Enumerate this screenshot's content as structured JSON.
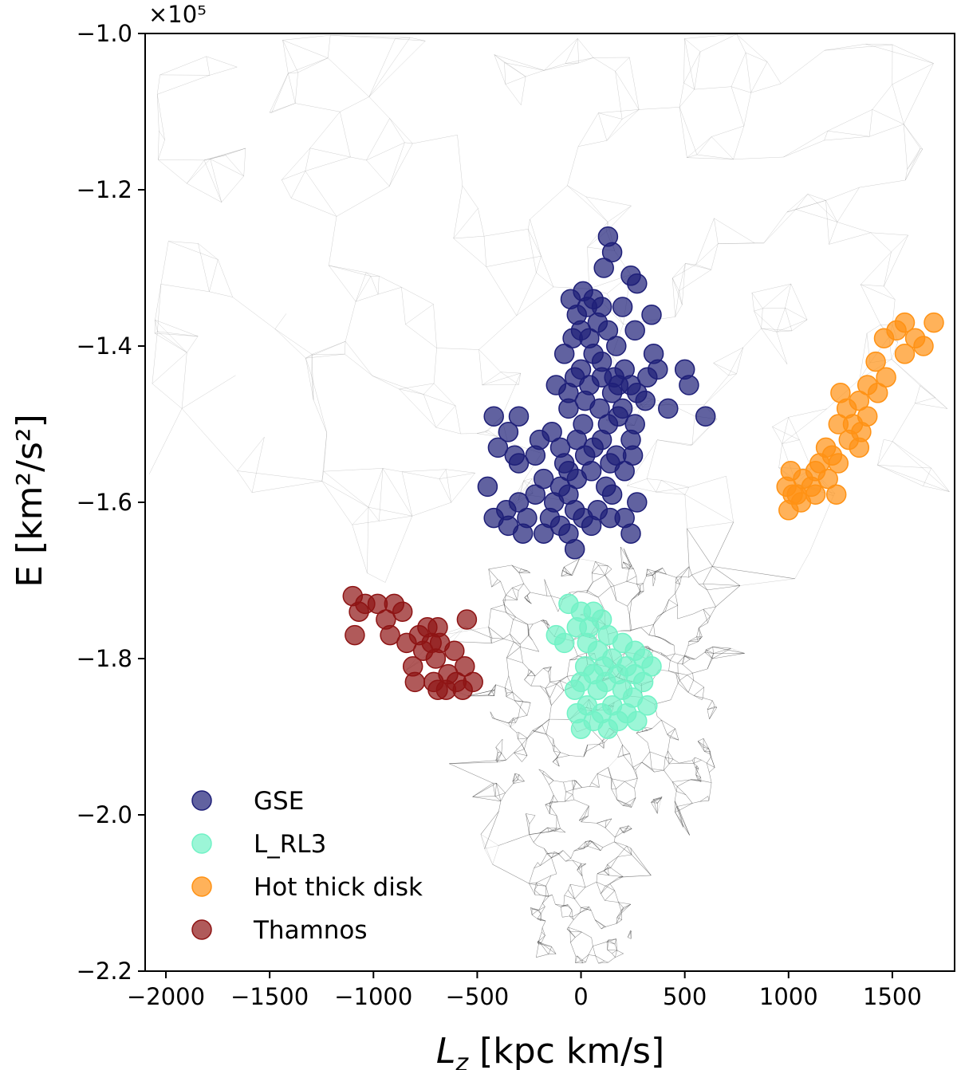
{
  "chart_data": {
    "type": "scatter",
    "xlabel_main": "L",
    "xlabel_sub": "z",
    "xlabel_rest": " [kpc km/s]",
    "ylabel": "E [km²/s²]",
    "y_multiplier": "×10⁵",
    "xlim": [
      -2100,
      1800
    ],
    "ylim": [
      -2.2,
      -1.0
    ],
    "x_ticks": [
      -2000,
      -1500,
      -1000,
      -500,
      0,
      500,
      1000,
      1500
    ],
    "x_tick_labels": [
      "−2000",
      "−1500",
      "−1000",
      "−500",
      "0",
      "500",
      "1000",
      "1500"
    ],
    "y_ticks": [
      -2.2,
      -2.0,
      -1.8,
      -1.6,
      -1.4,
      -1.2,
      -1.0
    ],
    "y_tick_labels": [
      "−2.2",
      "−2.0",
      "−1.8",
      "−1.6",
      "−1.4",
      "−1.2",
      "−1.0"
    ],
    "grid": false,
    "legend_position": "bottom-left",
    "background_network": "Delaunay-style mesh of thin gray/black line segments spanning the plot, densest around Lz 0–300, E −1.7 to −1.95",
    "series": [
      {
        "name": "GSE",
        "color": "#1e1f78",
        "points": [
          [
            130,
            -1.26
          ],
          [
            150,
            -1.28
          ],
          [
            110,
            -1.3
          ],
          [
            240,
            -1.31
          ],
          [
            270,
            -1.32
          ],
          [
            10,
            -1.33
          ],
          [
            60,
            -1.34
          ],
          [
            -50,
            -1.34
          ],
          [
            30,
            -1.35
          ],
          [
            100,
            -1.35
          ],
          [
            200,
            -1.35
          ],
          [
            340,
            -1.36
          ],
          [
            -20,
            -1.36
          ],
          [
            80,
            -1.37
          ],
          [
            0,
            -1.38
          ],
          [
            130,
            -1.38
          ],
          [
            260,
            -1.38
          ],
          [
            -40,
            -1.39
          ],
          [
            40,
            -1.39
          ],
          [
            170,
            -1.4
          ],
          [
            -80,
            -1.41
          ],
          [
            60,
            -1.41
          ],
          [
            100,
            -1.42
          ],
          [
            350,
            -1.41
          ],
          [
            0,
            -1.43
          ],
          [
            210,
            -1.43
          ],
          [
            370,
            -1.43
          ],
          [
            -30,
            -1.44
          ],
          [
            100,
            -1.44
          ],
          [
            160,
            -1.44
          ],
          [
            320,
            -1.44
          ],
          [
            500,
            -1.43
          ],
          [
            -120,
            -1.45
          ],
          [
            40,
            -1.45
          ],
          [
            180,
            -1.45
          ],
          [
            240,
            -1.45
          ],
          [
            520,
            -1.45
          ],
          [
            -60,
            -1.46
          ],
          [
            150,
            -1.46
          ],
          [
            270,
            -1.46
          ],
          [
            310,
            -1.47
          ],
          [
            20,
            -1.47
          ],
          [
            90,
            -1.48
          ],
          [
            200,
            -1.48
          ],
          [
            -60,
            -1.48
          ],
          [
            420,
            -1.48
          ],
          [
            600,
            -1.49
          ],
          [
            -420,
            -1.49
          ],
          [
            -300,
            -1.49
          ],
          [
            180,
            -1.49
          ],
          [
            10,
            -1.5
          ],
          [
            130,
            -1.5
          ],
          [
            260,
            -1.5
          ],
          [
            -350,
            -1.51
          ],
          [
            -140,
            -1.51
          ],
          [
            -200,
            -1.52
          ],
          [
            -20,
            -1.52
          ],
          [
            100,
            -1.52
          ],
          [
            240,
            -1.52
          ],
          [
            -400,
            -1.53
          ],
          [
            -100,
            -1.53
          ],
          [
            60,
            -1.53
          ],
          [
            -320,
            -1.54
          ],
          [
            -220,
            -1.54
          ],
          [
            20,
            -1.54
          ],
          [
            170,
            -1.54
          ],
          [
            250,
            -1.54
          ],
          [
            -80,
            -1.55
          ],
          [
            -300,
            -1.55
          ],
          [
            140,
            -1.55
          ],
          [
            -60,
            -1.56
          ],
          [
            50,
            -1.56
          ],
          [
            210,
            -1.56
          ],
          [
            -180,
            -1.57
          ],
          [
            -20,
            -1.57
          ],
          [
            -450,
            -1.58
          ],
          [
            -100,
            -1.58
          ],
          [
            120,
            -1.58
          ],
          [
            -220,
            -1.59
          ],
          [
            -60,
            -1.59
          ],
          [
            150,
            -1.59
          ],
          [
            -300,
            -1.6
          ],
          [
            -130,
            -1.6
          ],
          [
            270,
            -1.6
          ],
          [
            -360,
            -1.61
          ],
          [
            -30,
            -1.61
          ],
          [
            80,
            -1.61
          ],
          [
            -420,
            -1.62
          ],
          [
            -260,
            -1.62
          ],
          [
            -150,
            -1.62
          ],
          [
            10,
            -1.62
          ],
          [
            140,
            -1.62
          ],
          [
            210,
            -1.62
          ],
          [
            -350,
            -1.63
          ],
          [
            -100,
            -1.63
          ],
          [
            50,
            -1.63
          ],
          [
            -280,
            -1.64
          ],
          [
            -180,
            -1.64
          ],
          [
            -60,
            -1.64
          ],
          [
            240,
            -1.64
          ],
          [
            -30,
            -1.66
          ]
        ]
      },
      {
        "name": "L_RL3",
        "color": "#72f2c6",
        "points": [
          [
            -60,
            -1.73
          ],
          [
            0,
            -1.74
          ],
          [
            60,
            -1.74
          ],
          [
            100,
            -1.75
          ],
          [
            -20,
            -1.76
          ],
          [
            40,
            -1.76
          ],
          [
            130,
            -1.77
          ],
          [
            -120,
            -1.77
          ],
          [
            -80,
            -1.78
          ],
          [
            30,
            -1.78
          ],
          [
            200,
            -1.78
          ],
          [
            260,
            -1.79
          ],
          [
            80,
            -1.79
          ],
          [
            150,
            -1.8
          ],
          [
            300,
            -1.8
          ],
          [
            20,
            -1.81
          ],
          [
            110,
            -1.81
          ],
          [
            220,
            -1.81
          ],
          [
            340,
            -1.81
          ],
          [
            60,
            -1.82
          ],
          [
            180,
            -1.82
          ],
          [
            260,
            -1.82
          ],
          [
            0,
            -1.83
          ],
          [
            120,
            -1.83
          ],
          [
            300,
            -1.83
          ],
          [
            -30,
            -1.84
          ],
          [
            200,
            -1.84
          ],
          [
            80,
            -1.84
          ],
          [
            250,
            -1.85
          ],
          [
            30,
            -1.86
          ],
          [
            150,
            -1.86
          ],
          [
            320,
            -1.86
          ],
          [
            -20,
            -1.87
          ],
          [
            100,
            -1.87
          ],
          [
            220,
            -1.87
          ],
          [
            60,
            -1.88
          ],
          [
            180,
            -1.88
          ],
          [
            270,
            -1.88
          ],
          [
            0,
            -1.89
          ],
          [
            130,
            -1.89
          ]
        ]
      },
      {
        "name": "Hot thick disk",
        "color": "#ff9214",
        "points": [
          [
            1700,
            -1.37
          ],
          [
            1560,
            -1.37
          ],
          [
            1520,
            -1.38
          ],
          [
            1460,
            -1.39
          ],
          [
            1610,
            -1.39
          ],
          [
            1650,
            -1.4
          ],
          [
            1560,
            -1.41
          ],
          [
            1420,
            -1.42
          ],
          [
            1470,
            -1.44
          ],
          [
            1380,
            -1.45
          ],
          [
            1430,
            -1.46
          ],
          [
            1250,
            -1.46
          ],
          [
            1340,
            -1.47
          ],
          [
            1280,
            -1.48
          ],
          [
            1380,
            -1.49
          ],
          [
            1310,
            -1.5
          ],
          [
            1240,
            -1.5
          ],
          [
            1350,
            -1.51
          ],
          [
            1290,
            -1.52
          ],
          [
            1340,
            -1.53
          ],
          [
            1180,
            -1.53
          ],
          [
            1210,
            -1.54
          ],
          [
            1150,
            -1.55
          ],
          [
            1130,
            -1.56
          ],
          [
            1240,
            -1.55
          ],
          [
            1010,
            -1.56
          ],
          [
            1070,
            -1.57
          ],
          [
            1190,
            -1.57
          ],
          [
            1110,
            -1.58
          ],
          [
            990,
            -1.58
          ],
          [
            1040,
            -1.59
          ],
          [
            1130,
            -1.59
          ],
          [
            1060,
            -1.6
          ],
          [
            1230,
            -1.59
          ],
          [
            1000,
            -1.61
          ],
          [
            1020,
            -1.59
          ]
        ]
      },
      {
        "name": "Thamnos",
        "color": "#8e1414",
        "points": [
          [
            -1100,
            -1.72
          ],
          [
            -1040,
            -1.73
          ],
          [
            -980,
            -1.73
          ],
          [
            -900,
            -1.73
          ],
          [
            -1070,
            -1.74
          ],
          [
            -860,
            -1.74
          ],
          [
            -940,
            -1.75
          ],
          [
            -740,
            -1.76
          ],
          [
            -690,
            -1.76
          ],
          [
            -550,
            -1.75
          ],
          [
            -1090,
            -1.77
          ],
          [
            -920,
            -1.77
          ],
          [
            -780,
            -1.77
          ],
          [
            -720,
            -1.78
          ],
          [
            -840,
            -1.78
          ],
          [
            -680,
            -1.78
          ],
          [
            -760,
            -1.79
          ],
          [
            -610,
            -1.79
          ],
          [
            -700,
            -1.8
          ],
          [
            -810,
            -1.81
          ],
          [
            -560,
            -1.81
          ],
          [
            -640,
            -1.82
          ],
          [
            -600,
            -1.83
          ],
          [
            -710,
            -1.83
          ],
          [
            -520,
            -1.83
          ],
          [
            -800,
            -1.83
          ],
          [
            -650,
            -1.84
          ],
          [
            -570,
            -1.84
          ],
          [
            -690,
            -1.84
          ]
        ]
      }
    ]
  }
}
